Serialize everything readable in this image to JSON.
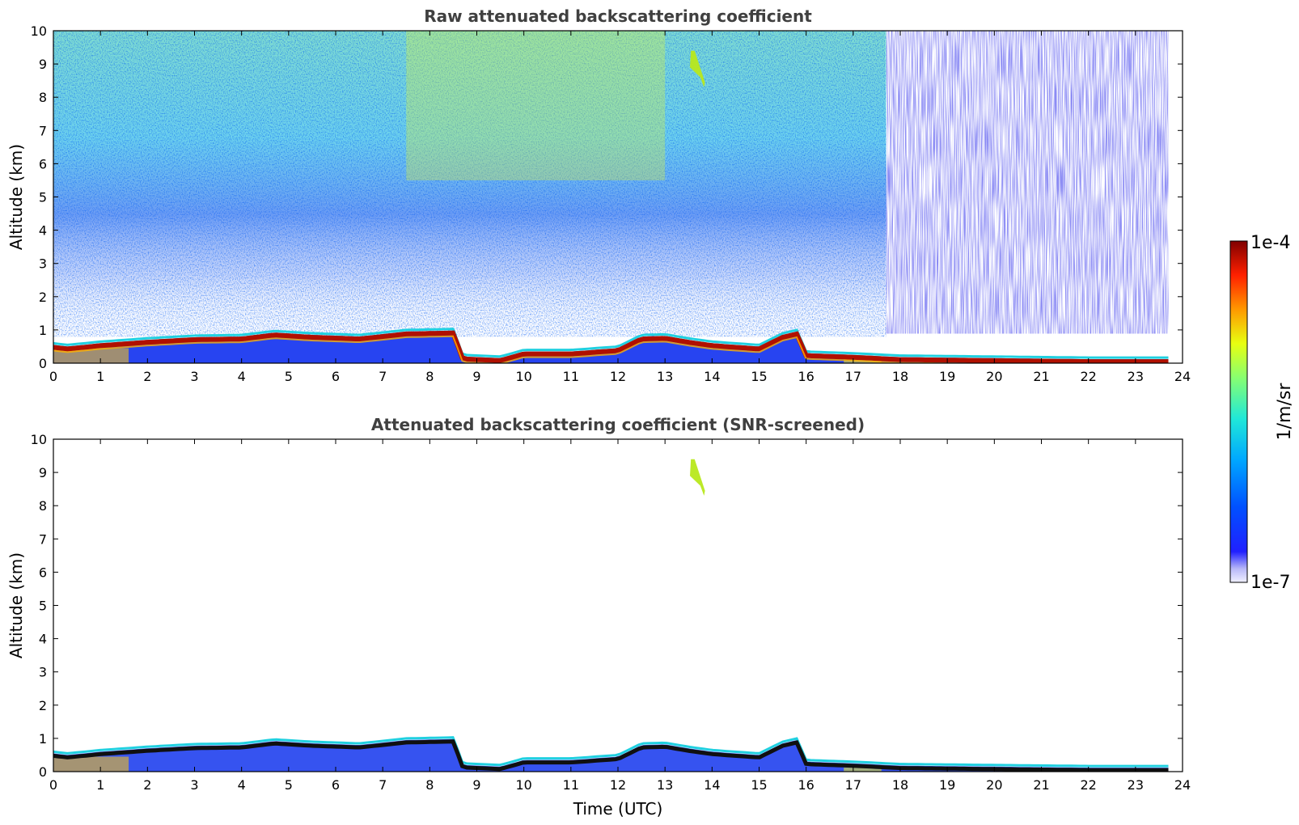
{
  "chart_data": [
    {
      "type": "heatmap",
      "title": "Raw attenuated backscattering coefficient",
      "xlabel": "",
      "ylabel": "Altitude (km)",
      "xlim": [
        0,
        24
      ],
      "ylim": [
        0,
        10
      ],
      "x_ticks": [
        0,
        1,
        2,
        3,
        4,
        5,
        6,
        7,
        8,
        9,
        10,
        11,
        12,
        13,
        14,
        15,
        16,
        17,
        18,
        19,
        20,
        21,
        22,
        23,
        24
      ],
      "y_ticks": [
        0,
        1,
        2,
        3,
        4,
        5,
        6,
        7,
        8,
        9,
        10
      ],
      "data_end_time": 23.7,
      "noise_change_time": 17.7,
      "boundary_layer_top_km": [
        [
          0,
          0.55
        ],
        [
          0.3,
          0.5
        ],
        [
          1,
          0.6
        ],
        [
          2,
          0.7
        ],
        [
          3,
          0.78
        ],
        [
          4,
          0.8
        ],
        [
          4.7,
          0.92
        ],
        [
          5.5,
          0.85
        ],
        [
          6.5,
          0.8
        ],
        [
          7.5,
          0.95
        ],
        [
          8.5,
          0.98
        ],
        [
          8.7,
          0.2
        ],
        [
          9.5,
          0.15
        ],
        [
          10,
          0.35
        ],
        [
          11,
          0.35
        ],
        [
          12,
          0.45
        ],
        [
          12.5,
          0.8
        ],
        [
          13,
          0.82
        ],
        [
          13.5,
          0.7
        ],
        [
          14,
          0.6
        ],
        [
          15,
          0.5
        ],
        [
          15.5,
          0.85
        ],
        [
          15.8,
          0.95
        ],
        [
          16,
          0.3
        ],
        [
          17,
          0.25
        ],
        [
          18,
          0.18
        ],
        [
          20,
          0.15
        ],
        [
          22,
          0.12
        ],
        [
          23.7,
          0.12
        ]
      ],
      "cloud_feature": {
        "time_range": [
          13.55,
          13.85
        ],
        "altitude_range_km": [
          8.3,
          9.4
        ]
      },
      "grid": false
    },
    {
      "type": "heatmap",
      "title": "Attenuated backscattering coefficient (SNR-screened)",
      "xlabel": "Time (UTC)",
      "ylabel": "Altitude (km)",
      "xlim": [
        0,
        24
      ],
      "ylim": [
        0,
        10
      ],
      "x_ticks": [
        0,
        1,
        2,
        3,
        4,
        5,
        6,
        7,
        8,
        9,
        10,
        11,
        12,
        13,
        14,
        15,
        16,
        17,
        18,
        19,
        20,
        21,
        22,
        23,
        24
      ],
      "y_ticks": [
        0,
        1,
        2,
        3,
        4,
        5,
        6,
        7,
        8,
        9,
        10
      ],
      "data_end_time": 23.7,
      "cloud_feature": {
        "time_range": [
          13.55,
          13.85
        ],
        "altitude_range_km": [
          8.3,
          9.4
        ]
      },
      "grid": false
    }
  ],
  "colorbar": {
    "label": "1/m/sr",
    "max_label": "1e-4",
    "min_label": "1e-7",
    "scale": "log",
    "range": [
      1e-07,
      0.0001
    ],
    "colormap": "jet"
  }
}
